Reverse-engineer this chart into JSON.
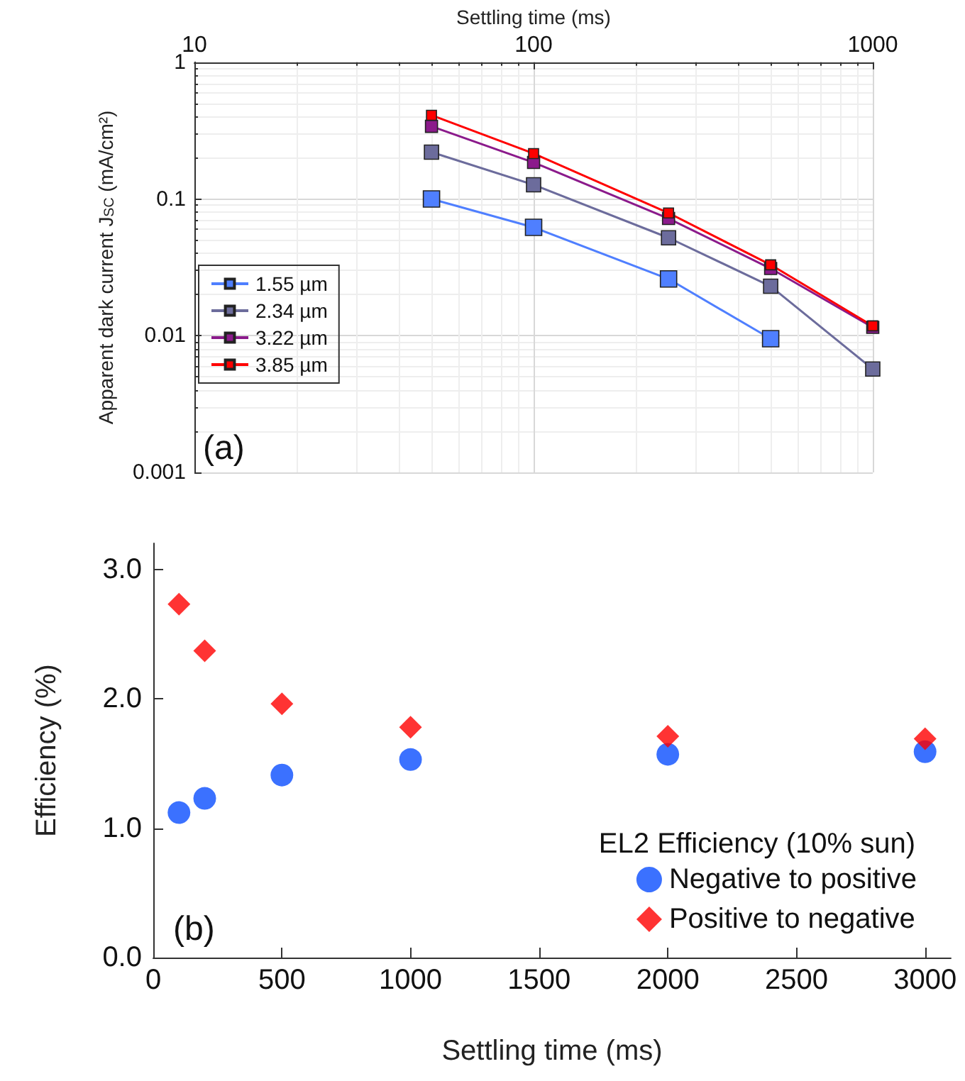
{
  "chart_data": [
    {
      "type": "line",
      "xlabel": "Settling time (ms)",
      "ylabel": "Apparent dark current J$_{SC}$ (mA/cm²)",
      "x": [
        50,
        100,
        250,
        500,
        1000
      ],
      "log": "xy",
      "xlim": [
        10,
        1000
      ],
      "xticks": [
        10,
        100,
        1000
      ],
      "ylim": [
        0.001,
        1
      ],
      "yticks": [
        0.001,
        0.01,
        0.1,
        1
      ],
      "grid": true,
      "legend": "bottom left",
      "marker": "square",
      "line_style": "solid",
      "annotations": [
        "(a)"
      ],
      "series": [
        {
          "name": "1.55 µm",
          "color": "#4f7fff",
          "values": [
            0.1,
            0.062,
            0.026,
            0.0095,
            null
          ]
        },
        {
          "name": "2.34 µm",
          "color": "#6c6c9c",
          "values": [
            0.22,
            0.127,
            0.052,
            0.023,
            0.0057
          ]
        },
        {
          "name": "3.22 µm",
          "color": "#8b1a8b",
          "values": [
            0.34,
            0.185,
            0.072,
            0.031,
            0.0115
          ]
        },
        {
          "name": "3.85 µm",
          "color": "#ff0000",
          "values": [
            0.41,
            0.215,
            0.079,
            0.033,
            0.0118
          ]
        }
      ]
    },
    {
      "type": "scatter",
      "xlabel": "Settling time (ms)",
      "ylabel": "Efficiency (%)",
      "legend_title": "EL2 Efficiency (10% sun)",
      "legend": "bottom right",
      "grid": false,
      "x": [
        100,
        200,
        500,
        1000,
        2000,
        3000
      ],
      "xlim": [
        0,
        3100
      ],
      "xticks": [
        0,
        500,
        1000,
        1500,
        2000,
        2500,
        3000
      ],
      "ylim": [
        0,
        3.2
      ],
      "yticks": [
        {
          "value": 0,
          "label": "0.0"
        },
        {
          "value": 1,
          "label": "1.0"
        },
        {
          "value": 2,
          "label": "2.0"
        },
        {
          "value": 3,
          "label": "3.0"
        }
      ],
      "annotations": [
        "(b)"
      ],
      "series": [
        {
          "name": "Negative to positive",
          "color": "#0a4dff",
          "marker": "circle",
          "values": [
            1.12,
            1.23,
            1.41,
            1.53,
            1.57,
            1.59
          ]
        },
        {
          "name": "Positive to negative",
          "color": "#ff0000",
          "marker": "diamond",
          "values": [
            2.73,
            2.37,
            1.96,
            1.78,
            1.71,
            1.69
          ]
        }
      ]
    }
  ]
}
